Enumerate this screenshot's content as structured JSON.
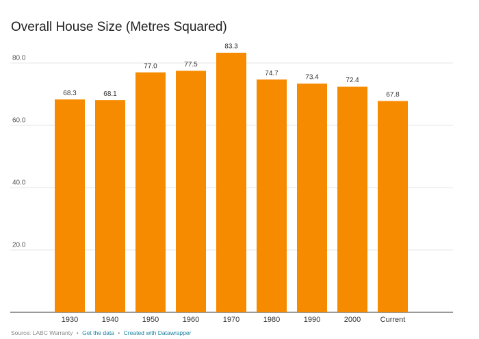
{
  "chart_data": {
    "type": "bar",
    "title": "Overall House Size (Metres Squared)",
    "categories": [
      "1930",
      "1940",
      "1950",
      "1960",
      "1970",
      "1980",
      "1990",
      "2000",
      "Current"
    ],
    "values": [
      68.3,
      68.1,
      77.0,
      77.5,
      83.3,
      74.7,
      73.4,
      72.4,
      67.8
    ],
    "value_labels": [
      "68.3",
      "68.1",
      "77.0",
      "77.5",
      "83.3",
      "74.7",
      "73.4",
      "72.4",
      "67.8"
    ],
    "color": "#f78b00",
    "ylim": [
      0,
      88
    ],
    "yticks": [
      {
        "value": 20,
        "label": "20.0"
      },
      {
        "value": 40,
        "label": "40.0"
      },
      {
        "value": 60,
        "label": "60.0"
      },
      {
        "value": 80,
        "label": "80.0"
      }
    ],
    "grid": true,
    "source": "Source: LABC Warranty",
    "separator": "•",
    "links": [
      "Get the data",
      "Created with Datawrapper"
    ]
  }
}
